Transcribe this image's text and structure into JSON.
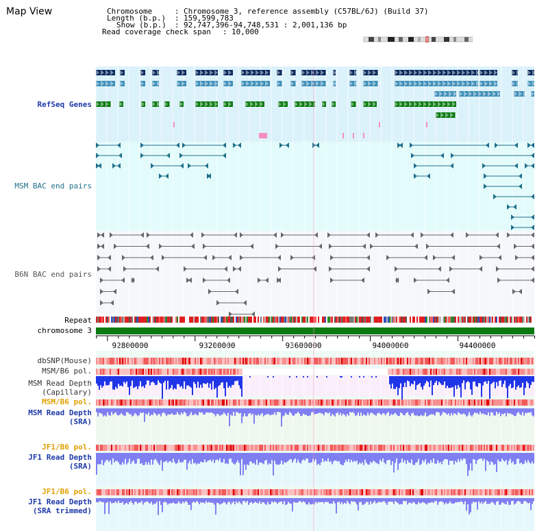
{
  "page": {
    "title": "Map View"
  },
  "info": {
    "chromosome_label": "Chromosome",
    "chromosome_value": "Chromosome 3, reference assembly (C57BL/6J) (Build 37)",
    "length_label": "Length (b.p.)",
    "length_value": "159,599,783",
    "show_label": "Show (b.p.)",
    "show_value": "92,747,396-94,748,531 : 2,001,136 bp",
    "coverage_label": "Read coverage check span",
    "coverage_value": "10,000"
  },
  "tracks": {
    "refseq": "RefSeq Genes",
    "msm_bac": "MSM BAC end pairs",
    "b6n_bac": "B6N BAC end pairs",
    "repeat": "Repeat",
    "chromosome": "chromosome 3",
    "dbsnp": "dbSNP(Mouse)",
    "msm_b6_pol_1": "MSM/B6 pol.",
    "msm_depth_cap": "MSM Read Depth\n(Capillary)",
    "msm_b6_pol_2": "MSM/B6 pol.",
    "msm_depth_sra": "MSM Read Depth\n(SRA)",
    "jf1_b6_pol_1": "JF1/B6 pol.",
    "jf1_depth_sra": "JF1 Read Depth\n(SRA)",
    "jf1_b6_pol_2": "JF1/B6 pol.",
    "jf1_depth_trim": "JF1 Read Depth\n(SRA trimmed)"
  },
  "axis": {
    "ticks": [
      "92800000",
      "93200000",
      "93600000",
      "94000000",
      "94400000"
    ],
    "tick_values": [
      92800000,
      93200000,
      93600000,
      94000000,
      94400000
    ],
    "range": [
      92747396,
      94748531
    ]
  },
  "colors": {
    "refseq_bg": "#dcf2fb",
    "gene_dark": "#0a2a5e",
    "gene_mid": "#3f8fb8",
    "gene_green": "#0a7a10",
    "msm_bac": "#1f6f8b",
    "b6n_bac": "#666666",
    "chrom_bar": "#0a7a10",
    "depth_blue": "#1f35e8",
    "depth_light": "#7f7ff2",
    "pol_red": "#f26a6a"
  }
}
